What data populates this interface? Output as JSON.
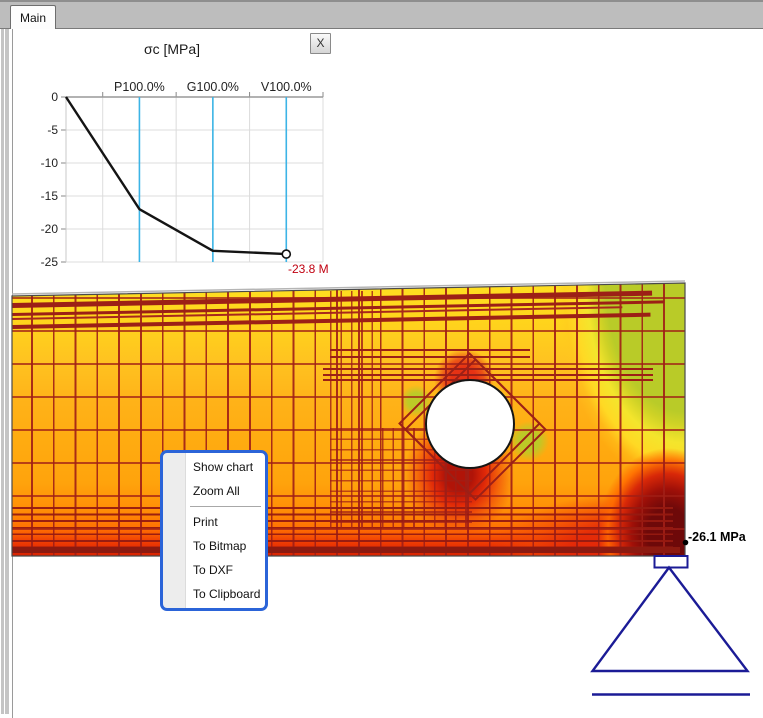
{
  "window": {
    "tab_label": "Main"
  },
  "chart": {
    "title": "σc [MPa]",
    "close_label": "X",
    "end_value_label": "-23.8 M"
  },
  "chart_data": {
    "type": "line",
    "title": "σc [MPa]",
    "ylim": [
      -25,
      0
    ],
    "yticks": [
      0,
      -5,
      -10,
      -15,
      -20,
      -25
    ],
    "x_units_total": 7,
    "grid": true,
    "increment_markers": [
      {
        "label": "P100.0%",
        "unit": 2
      },
      {
        "label": "G100.0%",
        "unit": 4
      },
      {
        "label": "V100.0%",
        "unit": 6
      }
    ],
    "series": [
      {
        "name": "sigma-c",
        "x_units": [
          0,
          2,
          4,
          6
        ],
        "values": [
          0,
          -17.0,
          -23.3,
          -23.8
        ]
      }
    ],
    "end_point_label": "-23.8 M",
    "marker_line_color": "#3cb4e6",
    "series_color": "#141414",
    "gridline_color": "#dcdcdc",
    "axis_color": "#999999"
  },
  "context_menu": {
    "items": [
      {
        "label": "Show chart"
      },
      {
        "label": "Zoom All"
      },
      {
        "label": "Print"
      },
      {
        "label": "To Bitmap"
      },
      {
        "label": "To DXF"
      },
      {
        "label": "To Clipboard"
      }
    ]
  },
  "stress_plot": {
    "max_compression_label": "-26.1 MPa"
  },
  "colors": {
    "menu_border": "#2b64d8",
    "value_red": "#c00010",
    "support_navy": "#1b1b96",
    "rebar": "#9c2016",
    "contour_scale": [
      "#b9cb28",
      "#f4e52c",
      "#ffd924",
      "#ffb218",
      "#ffa30c",
      "#ff6f02",
      "#e42a02",
      "#a01008",
      "#6e0909"
    ]
  }
}
